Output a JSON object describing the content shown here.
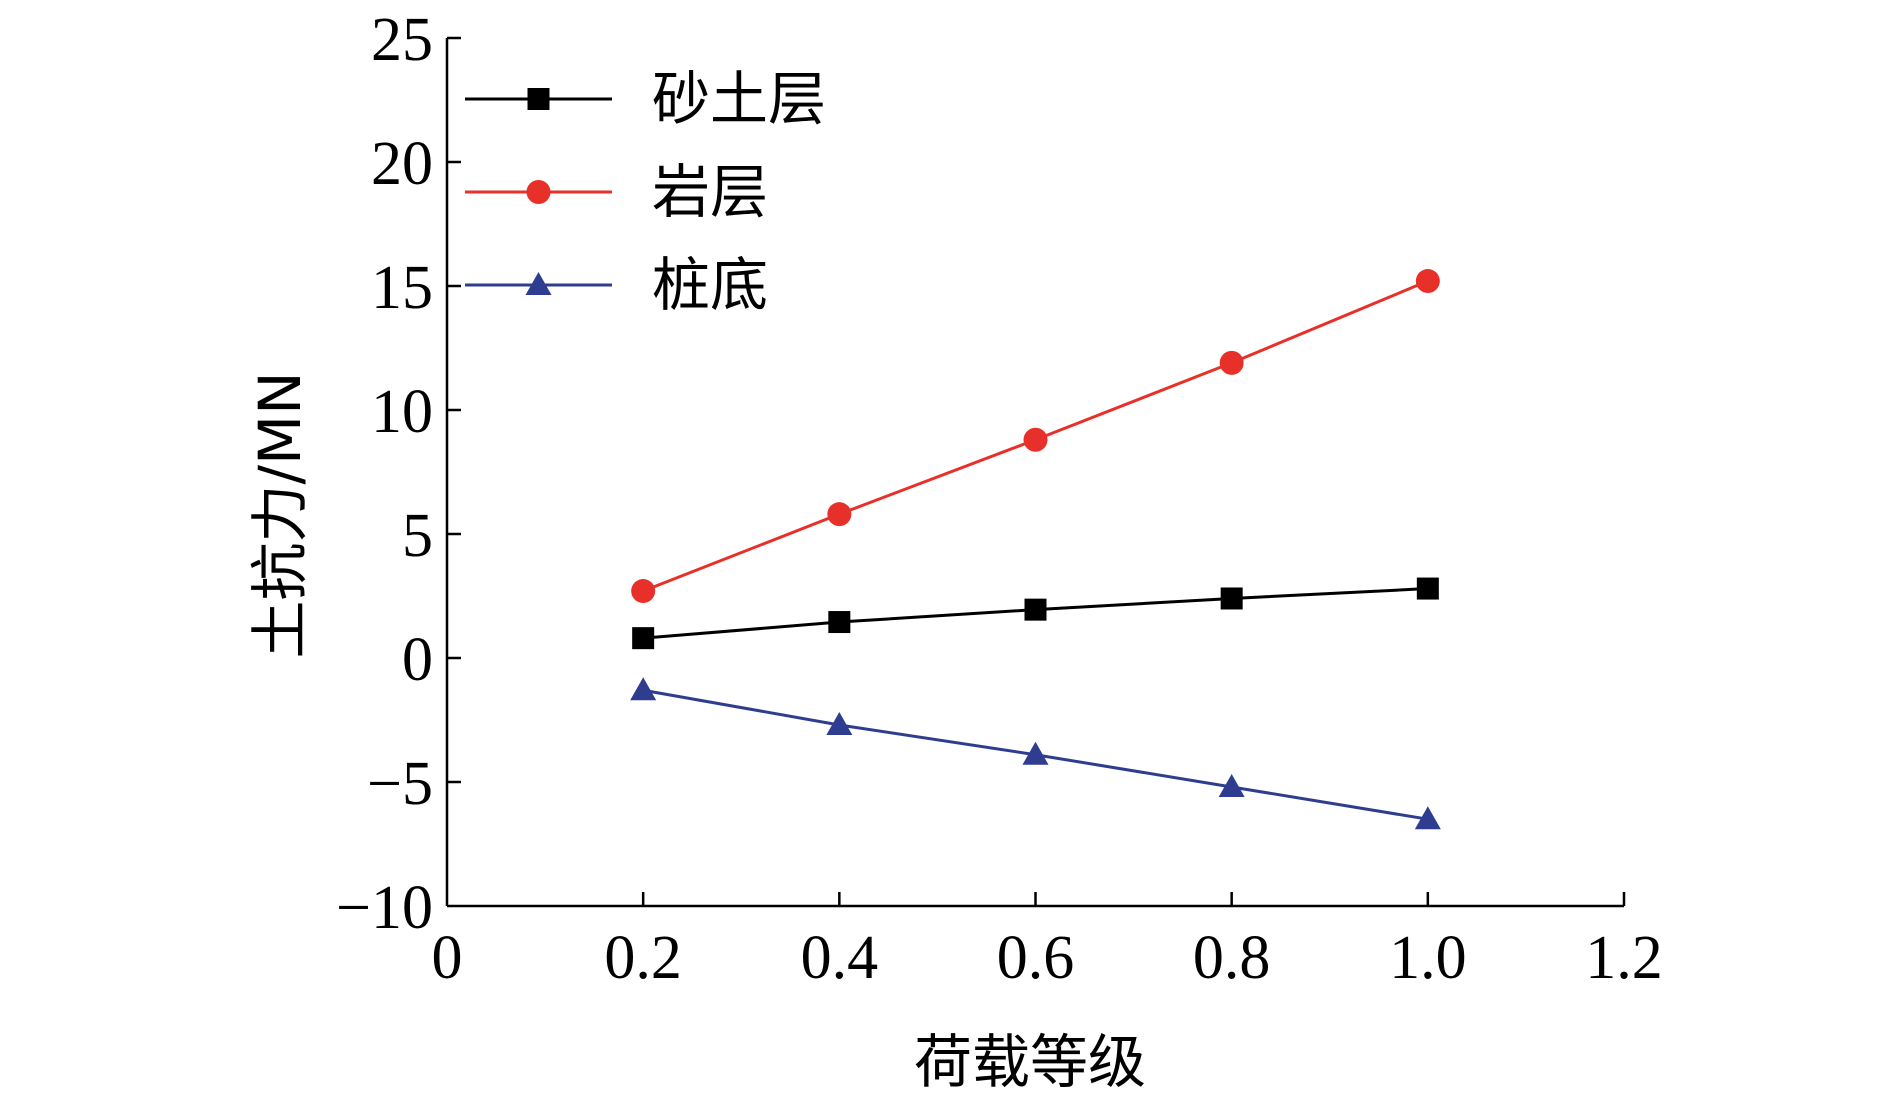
{
  "chart_data": {
    "type": "line",
    "title": "",
    "xlabel": "荷载等级",
    "ylabel": "土抗力/MN",
    "xlim": [
      0,
      1.2
    ],
    "ylim": [
      -10,
      25
    ],
    "x_ticks": [
      0,
      0.2,
      0.4,
      0.6,
      0.8,
      1.0,
      1.2
    ],
    "x_tick_labels": [
      "0",
      "0.2",
      "0.4",
      "0.6",
      "0.8",
      "1.0",
      "1.2"
    ],
    "y_ticks": [
      -10,
      -5,
      0,
      5,
      10,
      15,
      20,
      25
    ],
    "y_tick_labels": [
      "−10",
      "−5",
      "0",
      "5",
      "10",
      "15",
      "20",
      "25"
    ],
    "grid": false,
    "legend_position": "top-left",
    "x": [
      0.2,
      0.4,
      0.6,
      0.8,
      1.0
    ],
    "series": [
      {
        "name": "砂土层",
        "color": "#000000",
        "marker": "square",
        "values": [
          0.8,
          1.45,
          1.95,
          2.4,
          2.8
        ]
      },
      {
        "name": "岩层",
        "color": "#e8302a",
        "marker": "circle",
        "values": [
          2.7,
          5.8,
          8.8,
          11.9,
          15.2
        ]
      },
      {
        "name": "桩底",
        "color": "#2e3d8f",
        "marker": "triangle",
        "values": [
          -1.3,
          -2.7,
          -3.9,
          -5.2,
          -6.5
        ]
      }
    ]
  }
}
